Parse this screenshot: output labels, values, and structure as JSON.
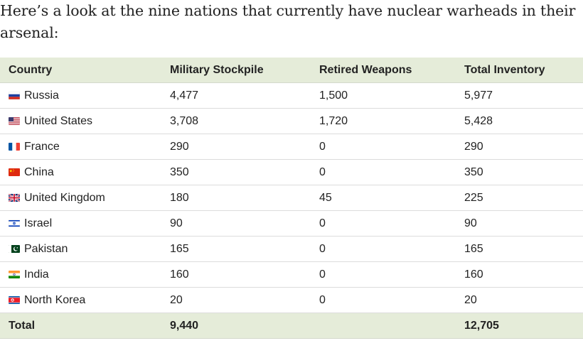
{
  "intro_text": "Here’s a look at the nine nations that currently have nuclear warheads in their arsenal:",
  "table": {
    "headers": [
      "Country",
      "Military Stockpile",
      "Retired Weapons",
      "Total Inventory"
    ],
    "rows": [
      {
        "flag": "russia-flag-icon",
        "country": "Russia",
        "stockpile": "4,477",
        "retired": "1,500",
        "total": "5,977"
      },
      {
        "flag": "usa-flag-icon",
        "country": "United States",
        "stockpile": "3,708",
        "retired": "1,720",
        "total": "5,428"
      },
      {
        "flag": "france-flag-icon",
        "country": "France",
        "stockpile": "290",
        "retired": "0",
        "total": "290"
      },
      {
        "flag": "china-flag-icon",
        "country": "China",
        "stockpile": "350",
        "retired": "0",
        "total": "350"
      },
      {
        "flag": "uk-flag-icon",
        "country": "United Kingdom",
        "stockpile": "180",
        "retired": "45",
        "total": "225"
      },
      {
        "flag": "israel-flag-icon",
        "country": "Israel",
        "stockpile": "90",
        "retired": "0",
        "total": "90"
      },
      {
        "flag": "pakistan-flag-icon",
        "country": "Pakistan",
        "stockpile": "165",
        "retired": "0",
        "total": "165"
      },
      {
        "flag": "india-flag-icon",
        "country": "India",
        "stockpile": "160",
        "retired": "0",
        "total": "160"
      },
      {
        "flag": "north-korea-flag-icon",
        "country": "North Korea",
        "stockpile": "20",
        "retired": "0",
        "total": "20"
      }
    ],
    "footer": {
      "label": "Total",
      "stockpile": "9,440",
      "retired": "",
      "total": "12,705"
    }
  },
  "colors": {
    "header_background": "#e5ecd9",
    "text": "#222222",
    "row_border": "#dcdcdc"
  }
}
